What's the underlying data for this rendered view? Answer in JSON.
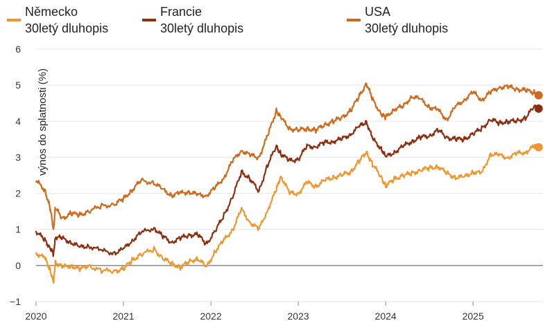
{
  "chart_data": {
    "type": "line",
    "title": "",
    "xlabel": "",
    "ylabel": "výnos do splatnosti (%)",
    "ylim": [
      -1,
      6
    ],
    "xlim": [
      2020.0,
      2025.8
    ],
    "yticks": [
      -1,
      0,
      1,
      2,
      3,
      4,
      5,
      6
    ],
    "ytick_labels": [
      "−1",
      "0",
      "1",
      "2",
      "3",
      "4",
      "5",
      "6"
    ],
    "xticks": [
      2020,
      2021,
      2022,
      2023,
      2024,
      2025
    ],
    "xtick_labels": [
      "2020",
      "2021",
      "2022",
      "2023",
      "2024",
      "2025"
    ],
    "grid": true,
    "legend_position": "top",
    "series": [
      {
        "name_line1": "Německo",
        "name_line2": "30letý dluhopis",
        "color": "#f0962e",
        "x": [
          2020.0,
          2020.1,
          2020.16,
          2020.2,
          2020.22,
          2020.3,
          2020.4,
          2020.5,
          2020.6,
          2020.75,
          2020.9,
          2021.0,
          2021.1,
          2021.2,
          2021.35,
          2021.45,
          2021.55,
          2021.65,
          2021.75,
          2021.85,
          2021.95,
          2022.05,
          2022.15,
          2022.25,
          2022.35,
          2022.45,
          2022.55,
          2022.65,
          2022.75,
          2022.8,
          2022.9,
          2023.0,
          2023.1,
          2023.2,
          2023.3,
          2023.4,
          2023.5,
          2023.6,
          2023.7,
          2023.78,
          2023.85,
          2023.95,
          2024.0,
          2024.1,
          2024.2,
          2024.3,
          2024.4,
          2024.5,
          2024.6,
          2024.7,
          2024.8,
          2024.9,
          2025.0,
          2025.1,
          2025.2,
          2025.3,
          2025.4,
          2025.5,
          2025.6,
          2025.7,
          2025.75
        ],
        "y": [
          0.35,
          0.2,
          -0.1,
          -0.5,
          0.1,
          -0.05,
          0.0,
          -0.1,
          0.0,
          -0.15,
          -0.15,
          -0.1,
          0.15,
          0.3,
          0.45,
          0.2,
          0.05,
          -0.05,
          0.1,
          0.2,
          -0.05,
          0.4,
          0.7,
          1.0,
          1.55,
          1.2,
          1.0,
          1.55,
          2.1,
          2.5,
          2.0,
          2.0,
          2.3,
          2.2,
          2.35,
          2.45,
          2.5,
          2.6,
          2.9,
          3.15,
          2.8,
          2.45,
          2.2,
          2.4,
          2.5,
          2.55,
          2.65,
          2.7,
          2.75,
          2.55,
          2.45,
          2.45,
          2.6,
          2.55,
          3.1,
          3.05,
          3.0,
          3.1,
          3.15,
          3.3,
          3.28
        ]
      },
      {
        "name_line1": "Francie",
        "name_line2": "30letý dluhopis",
        "color": "#8b2f0f",
        "x": [
          2020.0,
          2020.1,
          2020.16,
          2020.2,
          2020.22,
          2020.3,
          2020.4,
          2020.5,
          2020.6,
          2020.75,
          2020.9,
          2021.0,
          2021.1,
          2021.2,
          2021.35,
          2021.45,
          2021.55,
          2021.65,
          2021.75,
          2021.85,
          2021.95,
          2022.05,
          2022.15,
          2022.25,
          2022.35,
          2022.45,
          2022.55,
          2022.65,
          2022.75,
          2022.8,
          2022.9,
          2023.0,
          2023.1,
          2023.2,
          2023.3,
          2023.4,
          2023.5,
          2023.6,
          2023.7,
          2023.78,
          2023.85,
          2023.95,
          2024.0,
          2024.1,
          2024.2,
          2024.3,
          2024.4,
          2024.5,
          2024.6,
          2024.7,
          2024.8,
          2024.9,
          2025.0,
          2025.1,
          2025.2,
          2025.3,
          2025.4,
          2025.5,
          2025.6,
          2025.7,
          2025.75
        ],
        "y": [
          0.95,
          0.7,
          0.5,
          0.3,
          0.8,
          0.75,
          0.65,
          0.5,
          0.55,
          0.4,
          0.35,
          0.45,
          0.7,
          0.9,
          1.05,
          0.8,
          0.65,
          0.75,
          0.85,
          0.85,
          0.6,
          0.95,
          1.4,
          1.9,
          2.6,
          2.4,
          2.05,
          2.8,
          3.3,
          3.1,
          2.9,
          2.95,
          3.3,
          3.3,
          3.4,
          3.45,
          3.5,
          3.65,
          3.85,
          4.0,
          3.5,
          3.25,
          3.0,
          3.15,
          3.3,
          3.45,
          3.55,
          3.6,
          3.75,
          3.55,
          3.5,
          3.5,
          3.65,
          3.8,
          4.05,
          3.95,
          4.0,
          4.0,
          4.1,
          4.4,
          4.35
        ]
      },
      {
        "name_line1": "USA",
        "name_line2": "30letý dluhopis",
        "color": "#cf6a1c",
        "x": [
          2020.0,
          2020.1,
          2020.16,
          2020.2,
          2020.22,
          2020.3,
          2020.4,
          2020.5,
          2020.6,
          2020.75,
          2020.9,
          2021.0,
          2021.1,
          2021.2,
          2021.35,
          2021.45,
          2021.55,
          2021.65,
          2021.75,
          2021.85,
          2021.95,
          2022.05,
          2022.15,
          2022.25,
          2022.35,
          2022.45,
          2022.55,
          2022.65,
          2022.75,
          2022.8,
          2022.9,
          2023.0,
          2023.1,
          2023.2,
          2023.3,
          2023.4,
          2023.5,
          2023.6,
          2023.7,
          2023.78,
          2023.85,
          2023.95,
          2024.0,
          2024.1,
          2024.2,
          2024.3,
          2024.4,
          2024.5,
          2024.6,
          2024.7,
          2024.8,
          2024.9,
          2025.0,
          2025.1,
          2025.2,
          2025.3,
          2025.4,
          2025.5,
          2025.6,
          2025.7,
          2025.75
        ],
        "y": [
          2.35,
          2.1,
          1.6,
          1.0,
          1.6,
          1.3,
          1.45,
          1.4,
          1.5,
          1.65,
          1.7,
          1.85,
          2.1,
          2.35,
          2.3,
          2.1,
          1.95,
          2.0,
          2.05,
          1.95,
          1.95,
          2.15,
          2.45,
          2.9,
          3.2,
          3.05,
          3.0,
          3.6,
          4.3,
          4.1,
          3.8,
          3.75,
          3.8,
          3.75,
          3.9,
          4.0,
          4.1,
          4.3,
          4.7,
          5.05,
          4.6,
          4.2,
          4.1,
          4.35,
          4.4,
          4.7,
          4.6,
          4.4,
          4.3,
          4.05,
          4.4,
          4.6,
          4.8,
          4.6,
          4.8,
          4.95,
          4.95,
          4.9,
          4.85,
          4.8,
          4.72
        ]
      }
    ]
  }
}
